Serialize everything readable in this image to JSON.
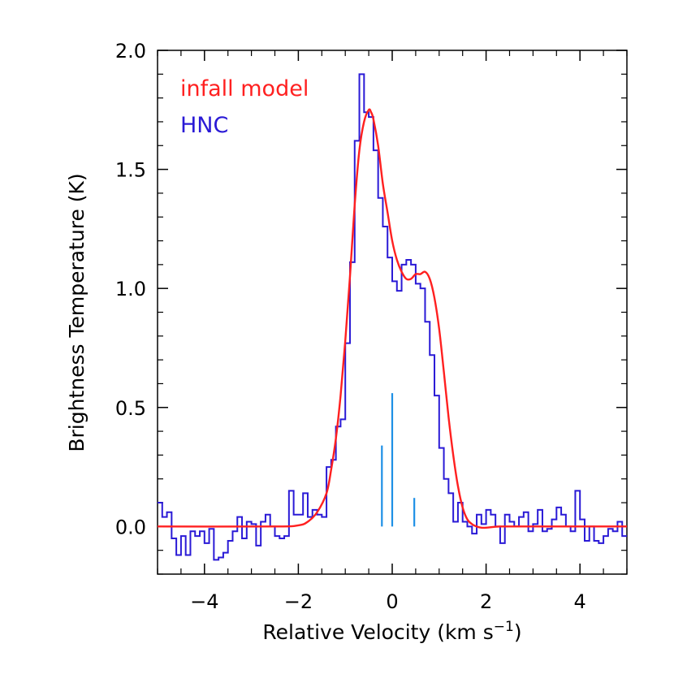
{
  "chart_data": {
    "type": "line",
    "xlabel": "Relative Velocity (km s",
    "xlabel_superscript": "−1",
    "xlabel_close": ")",
    "ylabel": "Brightness Temperature (K)",
    "xlim": [
      -5,
      5
    ],
    "ylim": [
      -0.2,
      2.0
    ],
    "x_ticks": [
      -4,
      -2,
      0,
      2,
      4
    ],
    "x_tick_labels": [
      "−4",
      "−2",
      "0",
      "2",
      "4"
    ],
    "y_ticks": [
      0.0,
      0.5,
      1.0,
      1.5,
      2.0
    ],
    "y_tick_labels": [
      "0.0",
      "0.5",
      "1.0",
      "1.5",
      "2.0"
    ],
    "grid": false,
    "legend_position": "top-left",
    "series": [
      {
        "name": "infall model",
        "color": "#ff2020",
        "style": "smooth-line",
        "x": [
          -5.0,
          -2.5,
          -2.0,
          -1.8,
          -1.6,
          -1.4,
          -1.3,
          -1.2,
          -1.1,
          -1.0,
          -0.9,
          -0.8,
          -0.7,
          -0.6,
          -0.5,
          -0.45,
          -0.4,
          -0.3,
          -0.2,
          -0.1,
          0.0,
          0.1,
          0.2,
          0.3,
          0.4,
          0.5,
          0.6,
          0.7,
          0.8,
          0.9,
          1.0,
          1.1,
          1.2,
          1.3,
          1.4,
          1.5,
          1.6,
          1.7,
          1.8,
          1.9,
          2.0,
          2.3,
          3.0,
          4.0,
          5.0
        ],
        "y": [
          0.0,
          0.0,
          0.005,
          0.02,
          0.06,
          0.14,
          0.24,
          0.37,
          0.55,
          0.78,
          1.05,
          1.35,
          1.58,
          1.7,
          1.75,
          1.74,
          1.71,
          1.6,
          1.44,
          1.32,
          1.2,
          1.12,
          1.07,
          1.04,
          1.04,
          1.06,
          1.06,
          1.07,
          1.04,
          0.96,
          0.83,
          0.65,
          0.46,
          0.3,
          0.17,
          0.08,
          0.03,
          0.01,
          0.0,
          -0.005,
          -0.005,
          0.0,
          0.0,
          0.0,
          0.0
        ]
      },
      {
        "name": "HNC",
        "color": "#2a1ad6",
        "style": "histogram",
        "x": [
          -4.95,
          -4.85,
          -4.75,
          -4.65,
          -4.55,
          -4.45,
          -4.35,
          -4.25,
          -4.15,
          -4.05,
          -3.95,
          -3.85,
          -3.75,
          -3.65,
          -3.55,
          -3.45,
          -3.35,
          -3.25,
          -3.15,
          -3.05,
          -2.95,
          -2.85,
          -2.75,
          -2.65,
          -2.55,
          -2.45,
          -2.35,
          -2.25,
          -2.15,
          -2.05,
          -1.95,
          -1.85,
          -1.75,
          -1.65,
          -1.55,
          -1.45,
          -1.35,
          -1.25,
          -1.15,
          -1.05,
          -0.95,
          -0.85,
          -0.75,
          -0.65,
          -0.55,
          -0.45,
          -0.35,
          -0.25,
          -0.15,
          -0.05,
          0.05,
          0.15,
          0.25,
          0.35,
          0.45,
          0.55,
          0.65,
          0.75,
          0.85,
          0.95,
          1.05,
          1.15,
          1.25,
          1.35,
          1.45,
          1.55,
          1.65,
          1.75,
          1.85,
          1.95,
          2.05,
          2.15,
          2.25,
          2.35,
          2.45,
          2.55,
          2.65,
          2.75,
          2.85,
          2.95,
          3.05,
          3.15,
          3.25,
          3.35,
          3.45,
          3.55,
          3.65,
          3.75,
          3.85,
          3.95,
          4.05,
          4.15,
          4.25,
          4.35,
          4.45,
          4.55,
          4.65,
          4.75,
          4.85,
          4.95
        ],
        "y": [
          0.1,
          0.04,
          0.06,
          -0.05,
          -0.12,
          -0.04,
          -0.12,
          -0.02,
          -0.04,
          -0.02,
          -0.07,
          -0.01,
          -0.14,
          -0.13,
          -0.11,
          -0.06,
          -0.02,
          0.04,
          -0.05,
          0.02,
          0.01,
          -0.08,
          0.02,
          0.05,
          0.0,
          -0.04,
          -0.05,
          -0.04,
          0.15,
          0.05,
          0.05,
          0.14,
          0.04,
          0.07,
          0.05,
          0.04,
          0.25,
          0.28,
          0.42,
          0.45,
          0.77,
          1.11,
          1.62,
          1.9,
          1.74,
          1.72,
          1.58,
          1.38,
          1.26,
          1.13,
          1.03,
          0.99,
          1.1,
          1.12,
          1.1,
          1.02,
          1.0,
          0.86,
          0.72,
          0.55,
          0.33,
          0.2,
          0.14,
          0.02,
          0.1,
          0.02,
          0.0,
          -0.03,
          0.05,
          0.01,
          0.07,
          0.05,
          0.0,
          -0.07,
          0.05,
          0.02,
          0.0,
          0.04,
          0.06,
          -0.02,
          0.01,
          0.07,
          -0.02,
          -0.01,
          0.03,
          0.08,
          0.05,
          0.0,
          -0.02,
          0.15,
          0.03,
          -0.06,
          0.0,
          -0.06,
          -0.07,
          -0.04,
          -0.01,
          -0.02,
          0.02,
          -0.04
        ]
      },
      {
        "name": "",
        "color": "#1e90e6",
        "style": "sticks",
        "x": [
          -0.22,
          0.0,
          0.47
        ],
        "y": [
          0.34,
          0.56,
          0.12
        ]
      }
    ]
  }
}
